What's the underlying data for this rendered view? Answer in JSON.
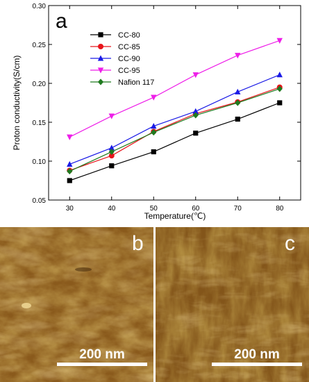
{
  "panel_labels": {
    "a": "a",
    "b": "b",
    "c": "c"
  },
  "chart_data": {
    "type": "line",
    "xlabel": "Temperature(℃)",
    "ylabel": "Proton conductivity(S/cm)",
    "xlim": [
      25,
      85
    ],
    "ylim": [
      0.05,
      0.3
    ],
    "x": [
      30,
      40,
      50,
      60,
      70,
      80
    ],
    "xticks": [
      "30",
      "40",
      "50",
      "60",
      "70",
      "80"
    ],
    "yticks": [
      "0.05",
      "0.10",
      "0.15",
      "0.20",
      "0.25",
      "0.30"
    ],
    "grid": false,
    "legend_position": "top-left",
    "series": [
      {
        "name": "CC-80",
        "color": "#000000",
        "marker": "square",
        "values": [
          0.075,
          0.094,
          0.112,
          0.136,
          0.154,
          0.175
        ]
      },
      {
        "name": "CC-85",
        "color": "#e8141b",
        "marker": "circle",
        "values": [
          0.088,
          0.107,
          0.138,
          0.161,
          0.176,
          0.195
        ]
      },
      {
        "name": "CC-90",
        "color": "#1a1ae6",
        "marker": "triangle-up",
        "values": [
          0.096,
          0.117,
          0.145,
          0.164,
          0.189,
          0.211
        ]
      },
      {
        "name": "CC-95",
        "color": "#ee1ee8",
        "marker": "triangle-down",
        "values": [
          0.131,
          0.158,
          0.182,
          0.211,
          0.236,
          0.255
        ]
      },
      {
        "name": "Nafion 117",
        "color": "#1f7a1f",
        "marker": "diamond",
        "values": [
          0.087,
          0.112,
          0.137,
          0.159,
          0.175,
          0.193
        ]
      }
    ]
  },
  "afm": {
    "b": {
      "scale_label": "200 nm",
      "scale_value_nm": 200
    },
    "c": {
      "scale_label": "200 nm",
      "scale_value_nm": 200
    }
  }
}
